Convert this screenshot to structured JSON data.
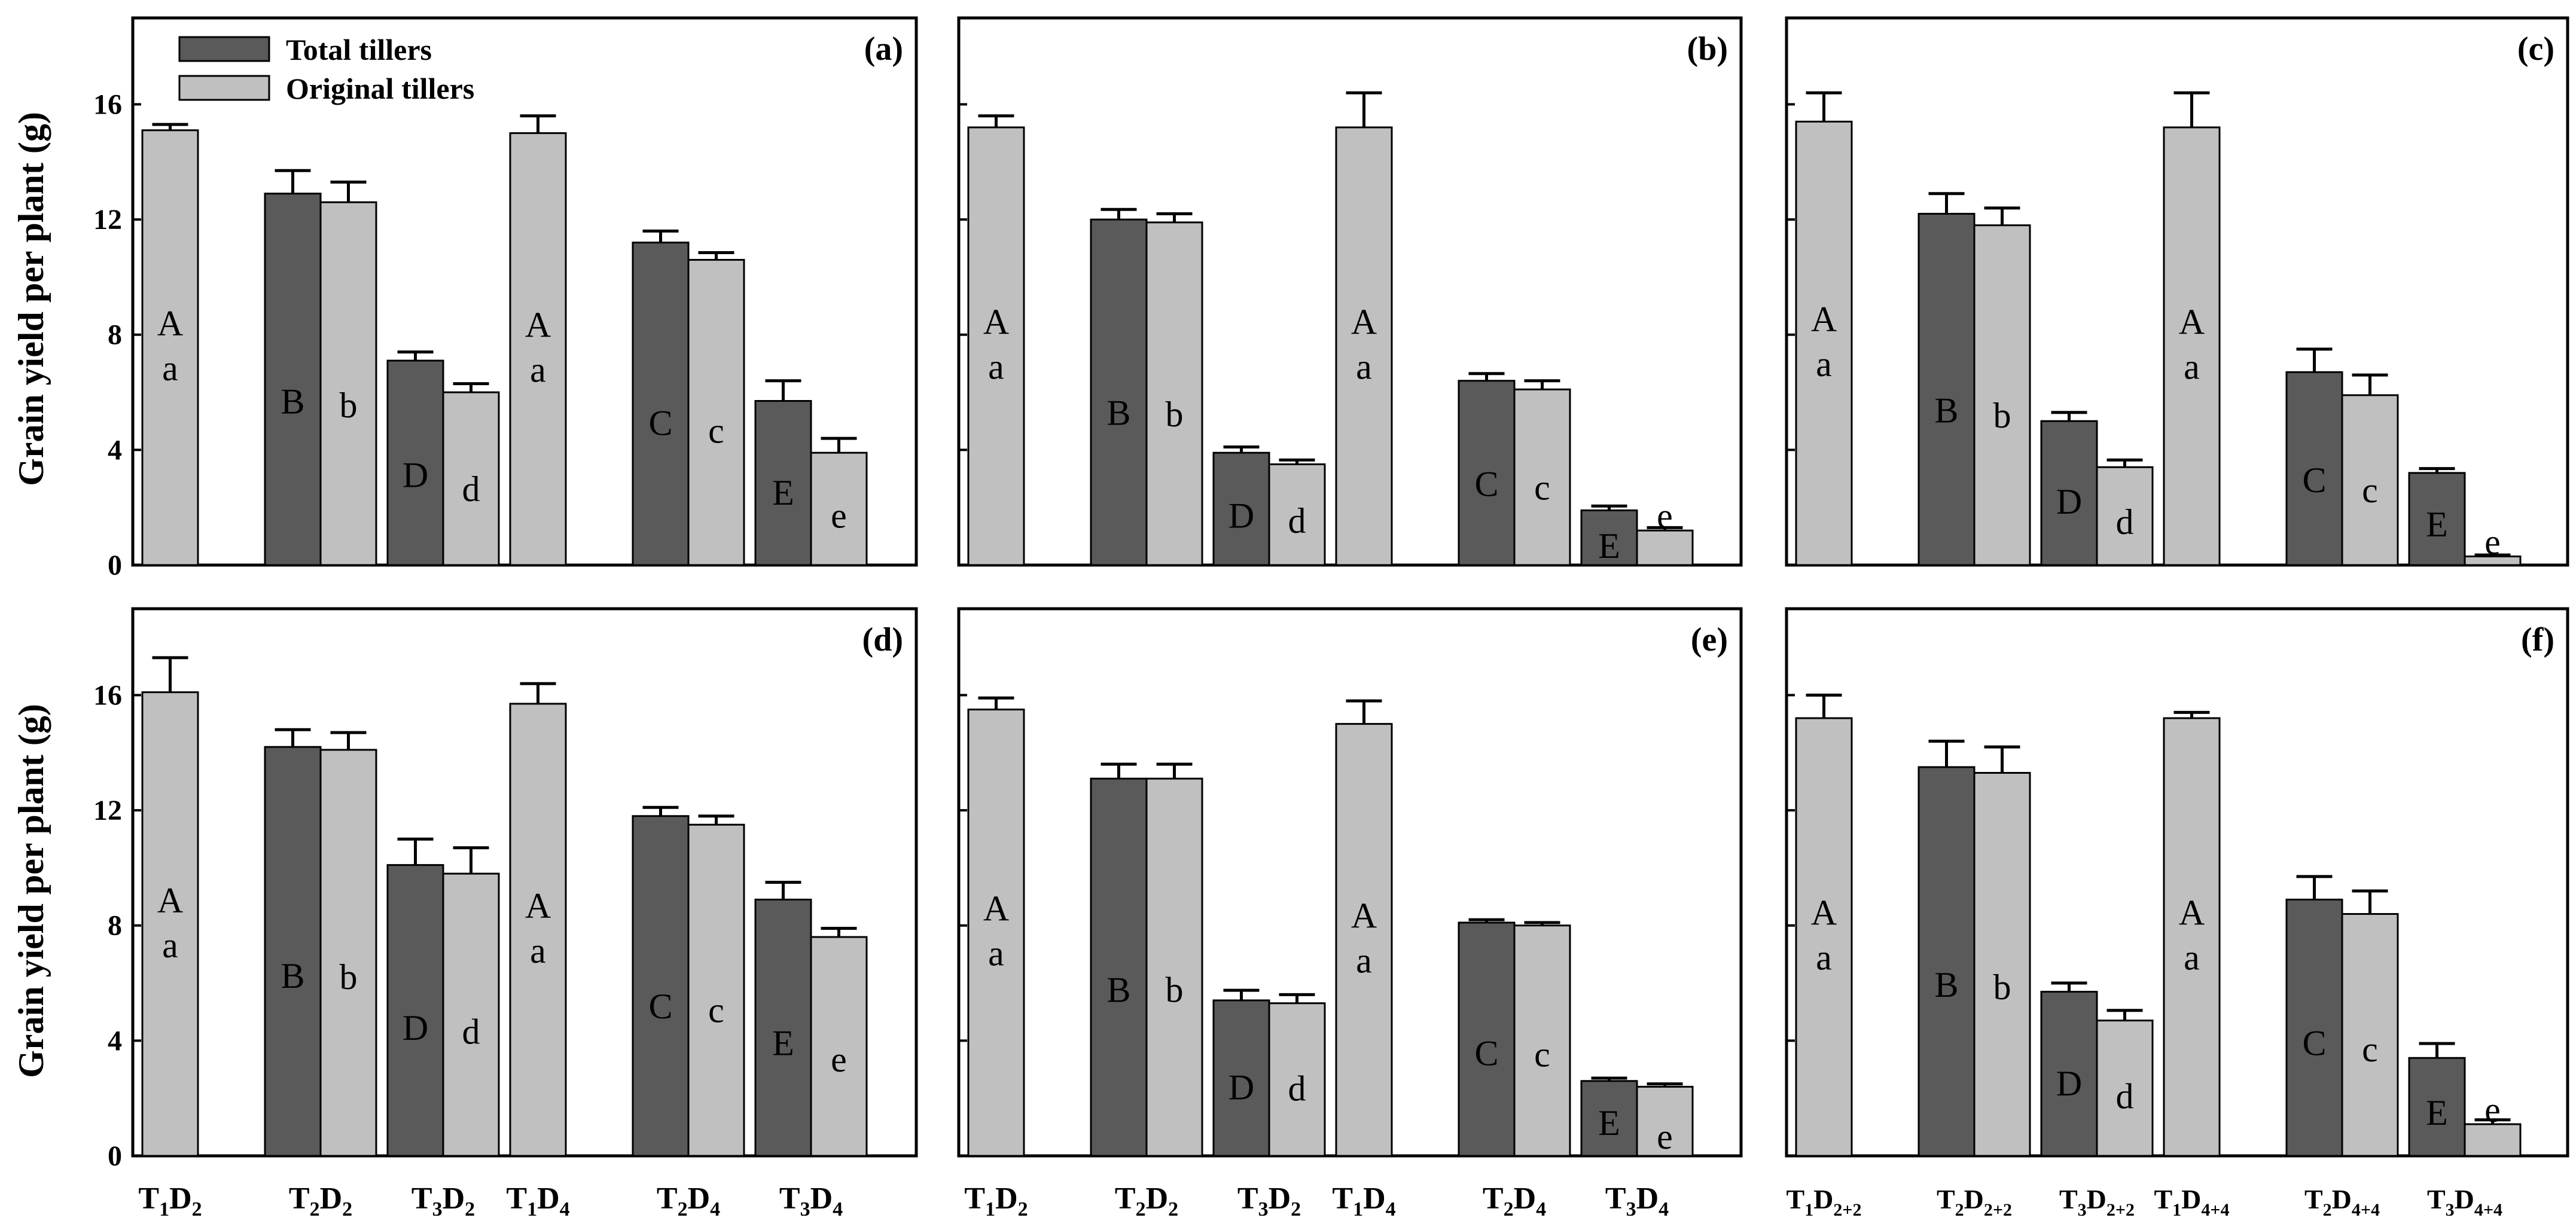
{
  "colors": {
    "total": "#5a5a5a",
    "original": "#c0c0c0",
    "axis": "#000000"
  },
  "legend": {
    "total_label": "Total tillers",
    "original_label": "Original tillers"
  },
  "ylabel": "Grain yield per plant (g)",
  "chart_data": [
    {
      "type": "bar",
      "panel": "(a)",
      "ylim": [
        0,
        19
      ],
      "yticks": [
        "0",
        "4",
        "8",
        "12",
        "16"
      ],
      "groups": [
        {
          "label": [
            "T",
            "1",
            "D",
            "2"
          ],
          "bars": [
            {
              "series": "original",
              "value": 15.1,
              "err": 0.2,
              "letters": [
                "A",
                "a"
              ]
            }
          ]
        },
        {
          "label": [
            "T",
            "2",
            "D",
            "2"
          ],
          "bars": [
            {
              "series": "total",
              "value": 12.9,
              "err": 0.8,
              "letters": [
                "B"
              ]
            },
            {
              "series": "original",
              "value": 12.6,
              "err": 0.7,
              "letters": [
                "b"
              ]
            }
          ]
        },
        {
          "label": [
            "T",
            "3",
            "D",
            "2"
          ],
          "bars": [
            {
              "series": "total",
              "value": 7.1,
              "err": 0.3,
              "letters": [
                "D"
              ]
            },
            {
              "series": "original",
              "value": 6.0,
              "err": 0.3,
              "letters": [
                "d"
              ]
            }
          ]
        },
        {
          "label": [
            "T",
            "1",
            "D",
            "4"
          ],
          "bars": [
            {
              "series": "original",
              "value": 15.0,
              "err": 0.6,
              "letters": [
                "A",
                "a"
              ]
            }
          ]
        },
        {
          "label": [
            "T",
            "2",
            "D",
            "4"
          ],
          "bars": [
            {
              "series": "total",
              "value": 11.2,
              "err": 0.4,
              "letters": [
                "C"
              ]
            },
            {
              "series": "original",
              "value": 10.6,
              "err": 0.25,
              "letters": [
                "c"
              ]
            }
          ]
        },
        {
          "label": [
            "T",
            "3",
            "D",
            "4"
          ],
          "bars": [
            {
              "series": "total",
              "value": 5.7,
              "err": 0.7,
              "letters": [
                "E"
              ]
            },
            {
              "series": "original",
              "value": 3.9,
              "err": 0.5,
              "letters": [
                "e"
              ]
            }
          ]
        }
      ]
    },
    {
      "type": "bar",
      "panel": "(b)",
      "ylim": [
        0,
        19
      ],
      "yticks": [
        "",
        "",
        "",
        "",
        ""
      ],
      "groups": [
        {
          "label": [
            "T",
            "1",
            "D",
            "2"
          ],
          "bars": [
            {
              "series": "original",
              "value": 15.2,
              "err": 0.4,
              "letters": [
                "A",
                "a"
              ]
            }
          ]
        },
        {
          "label": [
            "T",
            "2",
            "D",
            "2"
          ],
          "bars": [
            {
              "series": "total",
              "value": 12.0,
              "err": 0.35,
              "letters": [
                "B"
              ]
            },
            {
              "series": "original",
              "value": 11.9,
              "err": 0.3,
              "letters": [
                "b"
              ]
            }
          ]
        },
        {
          "label": [
            "T",
            "3",
            "D",
            "2"
          ],
          "bars": [
            {
              "series": "total",
              "value": 3.9,
              "err": 0.2,
              "letters": [
                "D"
              ]
            },
            {
              "series": "original",
              "value": 3.5,
              "err": 0.15,
              "letters": [
                "d"
              ]
            }
          ]
        },
        {
          "label": [
            "T",
            "1",
            "D",
            "4"
          ],
          "bars": [
            {
              "series": "original",
              "value": 15.2,
              "err": 1.2,
              "letters": [
                "A",
                "a"
              ]
            }
          ]
        },
        {
          "label": [
            "T",
            "2",
            "D",
            "4"
          ],
          "bars": [
            {
              "series": "total",
              "value": 6.4,
              "err": 0.25,
              "letters": [
                "C"
              ]
            },
            {
              "series": "original",
              "value": 6.1,
              "err": 0.3,
              "letters": [
                "c"
              ]
            }
          ]
        },
        {
          "label": [
            "T",
            "3",
            "D",
            "4"
          ],
          "bars": [
            {
              "series": "total",
              "value": 1.9,
              "err": 0.15,
              "letters": [
                "E"
              ]
            },
            {
              "series": "original",
              "value": 1.2,
              "err": 0.1,
              "letters": [
                "e"
              ]
            }
          ]
        }
      ]
    },
    {
      "type": "bar",
      "panel": "(c)",
      "ylim": [
        0,
        19
      ],
      "yticks": [
        "",
        "",
        "",
        "",
        ""
      ],
      "groups": [
        {
          "label": [
            "T",
            "1",
            "D",
            "2+2"
          ],
          "bars": [
            {
              "series": "original",
              "value": 15.4,
              "err": 1.0,
              "letters": [
                "A",
                "a"
              ]
            }
          ]
        },
        {
          "label": [
            "T",
            "2",
            "D",
            "2+2"
          ],
          "bars": [
            {
              "series": "total",
              "value": 12.2,
              "err": 0.7,
              "letters": [
                "B"
              ]
            },
            {
              "series": "original",
              "value": 11.8,
              "err": 0.6,
              "letters": [
                "b"
              ]
            }
          ]
        },
        {
          "label": [
            "T",
            "3",
            "D",
            "2+2"
          ],
          "bars": [
            {
              "series": "total",
              "value": 5.0,
              "err": 0.3,
              "letters": [
                "D"
              ]
            },
            {
              "series": "original",
              "value": 3.4,
              "err": 0.25,
              "letters": [
                "d"
              ]
            }
          ]
        },
        {
          "label": [
            "T",
            "1",
            "D",
            "4+4"
          ],
          "bars": [
            {
              "series": "original",
              "value": 15.2,
              "err": 1.2,
              "letters": [
                "A",
                "a"
              ]
            }
          ]
        },
        {
          "label": [
            "T",
            "2",
            "D",
            "4+4"
          ],
          "bars": [
            {
              "series": "total",
              "value": 6.7,
              "err": 0.8,
              "letters": [
                "C"
              ]
            },
            {
              "series": "original",
              "value": 5.9,
              "err": 0.7,
              "letters": [
                "c"
              ]
            }
          ]
        },
        {
          "label": [
            "T",
            "3",
            "D",
            "4+4"
          ],
          "bars": [
            {
              "series": "total",
              "value": 3.2,
              "err": 0.15,
              "letters": [
                "E"
              ]
            },
            {
              "series": "original",
              "value": 0.3,
              "err": 0.05,
              "letters": [
                "e"
              ]
            }
          ]
        }
      ]
    },
    {
      "type": "bar",
      "panel": "(d)",
      "ylim": [
        0,
        19
      ],
      "yticks": [
        "0",
        "4",
        "8",
        "12",
        "16"
      ],
      "groups": [
        {
          "label": [
            "T",
            "1",
            "D",
            "2"
          ],
          "bars": [
            {
              "series": "original",
              "value": 16.1,
              "err": 1.2,
              "letters": [
                "A",
                "a"
              ]
            }
          ]
        },
        {
          "label": [
            "T",
            "2",
            "D",
            "2"
          ],
          "bars": [
            {
              "series": "total",
              "value": 14.2,
              "err": 0.6,
              "letters": [
                "B"
              ]
            },
            {
              "series": "original",
              "value": 14.1,
              "err": 0.6,
              "letters": [
                "b"
              ]
            }
          ]
        },
        {
          "label": [
            "T",
            "3",
            "D",
            "2"
          ],
          "bars": [
            {
              "series": "total",
              "value": 10.1,
              "err": 0.9,
              "letters": [
                "D"
              ]
            },
            {
              "series": "original",
              "value": 9.8,
              "err": 0.9,
              "letters": [
                "d"
              ]
            }
          ]
        },
        {
          "label": [
            "T",
            "1",
            "D",
            "4"
          ],
          "bars": [
            {
              "series": "original",
              "value": 15.7,
              "err": 0.7,
              "letters": [
                "A",
                "a"
              ]
            }
          ]
        },
        {
          "label": [
            "T",
            "2",
            "D",
            "4"
          ],
          "bars": [
            {
              "series": "total",
              "value": 11.8,
              "err": 0.3,
              "letters": [
                "C"
              ]
            },
            {
              "series": "original",
              "value": 11.5,
              "err": 0.3,
              "letters": [
                "c"
              ]
            }
          ]
        },
        {
          "label": [
            "T",
            "3",
            "D",
            "4"
          ],
          "bars": [
            {
              "series": "total",
              "value": 8.9,
              "err": 0.6,
              "letters": [
                "E"
              ]
            },
            {
              "series": "original",
              "value": 7.6,
              "err": 0.3,
              "letters": [
                "e"
              ]
            }
          ]
        }
      ]
    },
    {
      "type": "bar",
      "panel": "(e)",
      "ylim": [
        0,
        19
      ],
      "yticks": [
        "",
        "",
        "",
        "",
        ""
      ],
      "groups": [
        {
          "label": [
            "T",
            "1",
            "D",
            "2"
          ],
          "bars": [
            {
              "series": "original",
              "value": 15.5,
              "err": 0.4,
              "letters": [
                "A",
                "a"
              ]
            }
          ]
        },
        {
          "label": [
            "T",
            "2",
            "D",
            "2"
          ],
          "bars": [
            {
              "series": "total",
              "value": 13.1,
              "err": 0.5,
              "letters": [
                "B"
              ]
            },
            {
              "series": "original",
              "value": 13.1,
              "err": 0.5,
              "letters": [
                "b"
              ]
            }
          ]
        },
        {
          "label": [
            "T",
            "3",
            "D",
            "2"
          ],
          "bars": [
            {
              "series": "total",
              "value": 5.4,
              "err": 0.35,
              "letters": [
                "D"
              ]
            },
            {
              "series": "original",
              "value": 5.3,
              "err": 0.3,
              "letters": [
                "d"
              ]
            }
          ]
        },
        {
          "label": [
            "T",
            "1",
            "D",
            "4"
          ],
          "bars": [
            {
              "series": "original",
              "value": 15.0,
              "err": 0.8,
              "letters": [
                "A",
                "a"
              ]
            }
          ]
        },
        {
          "label": [
            "T",
            "2",
            "D",
            "4"
          ],
          "bars": [
            {
              "series": "total",
              "value": 8.1,
              "err": 0.1,
              "letters": [
                "C"
              ]
            },
            {
              "series": "original",
              "value": 8.0,
              "err": 0.1,
              "letters": [
                "c"
              ]
            }
          ]
        },
        {
          "label": [
            "T",
            "3",
            "D",
            "4"
          ],
          "bars": [
            {
              "series": "total",
              "value": 2.6,
              "err": 0.1,
              "letters": [
                "E"
              ]
            },
            {
              "series": "original",
              "value": 2.4,
              "err": 0.1,
              "letters": [
                "e"
              ]
            }
          ]
        }
      ]
    },
    {
      "type": "bar",
      "panel": "(f)",
      "ylim": [
        0,
        19
      ],
      "yticks": [
        "",
        "",
        "",
        "",
        ""
      ],
      "groups": [
        {
          "label": [
            "T",
            "1",
            "D",
            "2+2"
          ],
          "bars": [
            {
              "series": "original",
              "value": 15.2,
              "err": 0.8,
              "letters": [
                "A",
                "a"
              ]
            }
          ]
        },
        {
          "label": [
            "T",
            "2",
            "D",
            "2+2"
          ],
          "bars": [
            {
              "series": "total",
              "value": 13.5,
              "err": 0.9,
              "letters": [
                "B"
              ]
            },
            {
              "series": "original",
              "value": 13.3,
              "err": 0.9,
              "letters": [
                "b"
              ]
            }
          ]
        },
        {
          "label": [
            "T",
            "3",
            "D",
            "2+2"
          ],
          "bars": [
            {
              "series": "total",
              "value": 5.7,
              "err": 0.3,
              "letters": [
                "D"
              ]
            },
            {
              "series": "original",
              "value": 4.7,
              "err": 0.35,
              "letters": [
                "d"
              ]
            }
          ]
        },
        {
          "label": [
            "T",
            "1",
            "D",
            "4+4"
          ],
          "bars": [
            {
              "series": "original",
              "value": 15.2,
              "err": 0.2,
              "letters": [
                "A",
                "a"
              ]
            }
          ]
        },
        {
          "label": [
            "T",
            "2",
            "D",
            "4+4"
          ],
          "bars": [
            {
              "series": "total",
              "value": 8.9,
              "err": 0.8,
              "letters": [
                "C"
              ]
            },
            {
              "series": "original",
              "value": 8.4,
              "err": 0.8,
              "letters": [
                "c"
              ]
            }
          ]
        },
        {
          "label": [
            "T",
            "3",
            "D",
            "4+4"
          ],
          "bars": [
            {
              "series": "total",
              "value": 3.4,
              "err": 0.5,
              "letters": [
                "E"
              ]
            },
            {
              "series": "original",
              "value": 1.1,
              "err": 0.15,
              "letters": [
                "e"
              ]
            }
          ]
        }
      ]
    }
  ]
}
